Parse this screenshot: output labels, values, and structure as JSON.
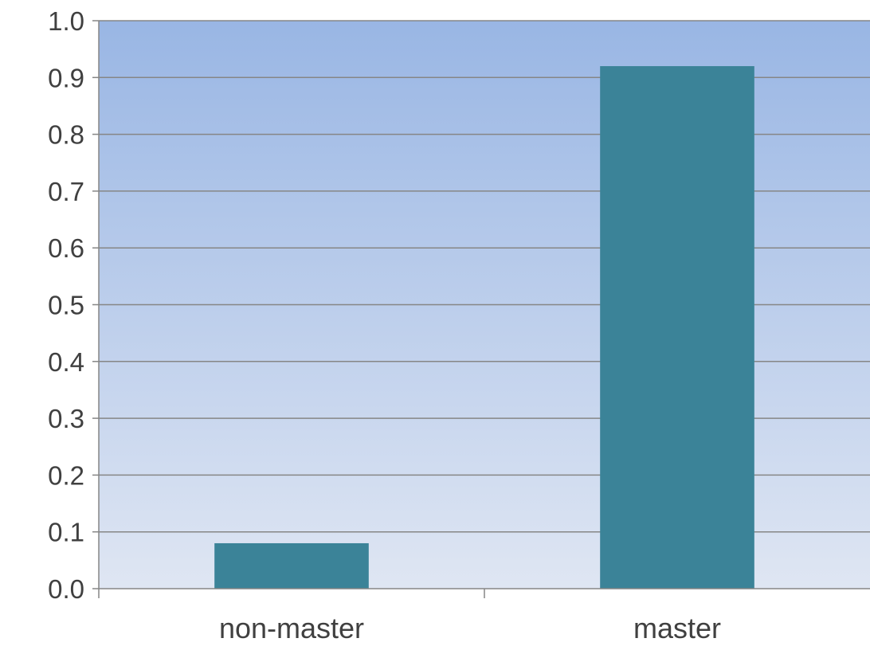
{
  "chart_data": {
    "type": "bar",
    "title": "",
    "xlabel": "",
    "ylabel": "",
    "categories": [
      "non-master",
      "master"
    ],
    "values": [
      0.08,
      0.92
    ],
    "ylim": [
      0,
      1.0
    ],
    "yticks": [
      "0.0",
      "0.1",
      "0.2",
      "0.3",
      "0.4",
      "0.5",
      "0.6",
      "0.7",
      "0.8",
      "0.9",
      "1.0"
    ],
    "grid": true,
    "legend": "none",
    "colors": {
      "bar": "#3B8398",
      "background_top": "#99B6E4",
      "background_bottom": "#DFE6F3",
      "gridline": "#868686",
      "axis": "#868686",
      "text": "#404040"
    }
  }
}
